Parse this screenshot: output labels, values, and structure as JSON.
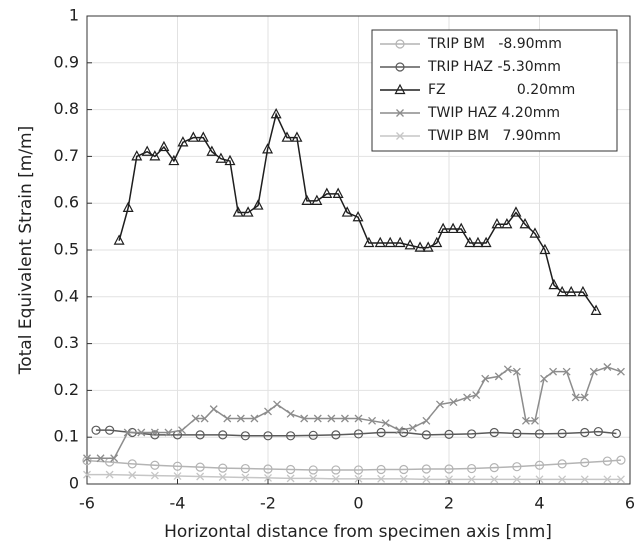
{
  "chart_data": {
    "type": "line",
    "xlabel": "Horizontal distance from specimen axis [mm]",
    "ylabel": "Total Equivalent Strain [m/m]",
    "xlim": [
      -6,
      6
    ],
    "xticks": [
      -6,
      -4,
      -2,
      0,
      2,
      4,
      6
    ],
    "ylim": [
      0,
      1
    ],
    "yticks": [
      0,
      0.1,
      0.2,
      0.3,
      0.4,
      0.5,
      0.6,
      0.7,
      0.8,
      0.9,
      1
    ],
    "grid": true,
    "legend": "upper right",
    "series": [
      {
        "name": "TRIP BM   -8.90mm",
        "color": "#b4b4b4",
        "marker": "circle",
        "x": [
          -6,
          -5.5,
          -5,
          -4.5,
          -4,
          -3.5,
          -3,
          -2.5,
          -2,
          -1.5,
          -1,
          -0.5,
          0,
          0.5,
          1,
          1.5,
          2,
          2.5,
          3,
          3.5,
          4,
          4.5,
          5,
          5.5,
          5.8
        ],
        "values": [
          0.05,
          0.047,
          0.043,
          0.04,
          0.038,
          0.036,
          0.034,
          0.033,
          0.032,
          0.031,
          0.03,
          0.03,
          0.03,
          0.031,
          0.031,
          0.032,
          0.032,
          0.033,
          0.035,
          0.037,
          0.04,
          0.043,
          0.046,
          0.049,
          0.051
        ]
      },
      {
        "name": "TRIP HAZ -5.30mm",
        "color": "#5a5a5a",
        "marker": "circle",
        "x": [
          -5.8,
          -5.5,
          -5,
          -4.5,
          -4,
          -3.5,
          -3,
          -2.5,
          -2,
          -1.5,
          -1,
          -0.5,
          0,
          0.5,
          1,
          1.5,
          2,
          2.5,
          3,
          3.5,
          4,
          4.5,
          5,
          5.3,
          5.7
        ],
        "values": [
          0.115,
          0.115,
          0.11,
          0.105,
          0.105,
          0.105,
          0.105,
          0.103,
          0.103,
          0.103,
          0.104,
          0.105,
          0.107,
          0.11,
          0.11,
          0.105,
          0.106,
          0.107,
          0.11,
          0.108,
          0.107,
          0.108,
          0.11,
          0.112,
          0.108
        ]
      },
      {
        "name": "FZ                0.20mm",
        "color": "#1e1e1e",
        "marker": "triangle",
        "x": [
          -5.29,
          -5.09,
          -4.9,
          -4.67,
          -4.5,
          -4.3,
          -4.08,
          -3.88,
          -3.65,
          -3.43,
          -3.24,
          -3.04,
          -2.84,
          -2.66,
          -2.44,
          -2.22,
          -2.01,
          -1.82,
          -1.58,
          -1.36,
          -1.14,
          -0.92,
          -0.7,
          -0.45,
          -0.25,
          -0.01,
          0.23,
          0.48,
          0.7,
          0.92,
          1.14,
          1.36,
          1.54,
          1.73,
          1.87,
          2.09,
          2.27,
          2.46,
          2.64,
          2.82,
          3.06,
          3.28,
          3.48,
          3.68,
          3.9,
          4.12,
          4.32,
          4.5,
          4.7,
          4.96,
          5.25
        ],
        "values": [
          0.52,
          0.59,
          0.7,
          0.71,
          0.7,
          0.72,
          0.69,
          0.73,
          0.74,
          0.74,
          0.71,
          0.695,
          0.69,
          0.58,
          0.58,
          0.595,
          0.715,
          0.79,
          0.74,
          0.74,
          0.605,
          0.605,
          0.62,
          0.62,
          0.58,
          0.57,
          0.515,
          0.515,
          0.515,
          0.515,
          0.51,
          0.505,
          0.505,
          0.515,
          0.545,
          0.545,
          0.545,
          0.515,
          0.515,
          0.515,
          0.555,
          0.555,
          0.58,
          0.555,
          0.535,
          0.5,
          0.425,
          0.41,
          0.41,
          0.41,
          0.37
        ]
      },
      {
        "name": "TWIP HAZ 4.20mm",
        "color": "#8c8c8c",
        "marker": "x",
        "x": [
          -6,
          -5.7,
          -5.4,
          -5.1,
          -4.8,
          -4.5,
          -4.2,
          -3.9,
          -3.6,
          -3.4,
          -3.2,
          -2.9,
          -2.6,
          -2.3,
          -2,
          -1.8,
          -1.5,
          -1.2,
          -0.9,
          -0.6,
          -0.3,
          0,
          0.3,
          0.6,
          0.9,
          1.2,
          1.5,
          1.8,
          2.1,
          2.4,
          2.6,
          2.8,
          3.1,
          3.3,
          3.5,
          3.7,
          3.9,
          4.1,
          4.3,
          4.6,
          4.8,
          5,
          5.2,
          5.5,
          5.8
        ],
        "values": [
          0.055,
          0.055,
          0.055,
          0.11,
          0.11,
          0.11,
          0.11,
          0.115,
          0.14,
          0.14,
          0.16,
          0.14,
          0.14,
          0.14,
          0.155,
          0.17,
          0.15,
          0.14,
          0.14,
          0.14,
          0.14,
          0.14,
          0.135,
          0.13,
          0.115,
          0.12,
          0.135,
          0.17,
          0.175,
          0.185,
          0.19,
          0.225,
          0.23,
          0.245,
          0.24,
          0.135,
          0.135,
          0.225,
          0.24,
          0.24,
          0.185,
          0.185,
          0.24,
          0.25,
          0.24
        ]
      },
      {
        "name": "TWIP BM   7.90mm",
        "color": "#c6c6c6",
        "marker": "x",
        "x": [
          -6,
          -5.5,
          -5,
          -4.5,
          -4,
          -3.5,
          -3,
          -2.5,
          -2,
          -1.5,
          -1,
          -0.5,
          0,
          0.5,
          1,
          1.5,
          2,
          2.5,
          3,
          3.5,
          4,
          4.5,
          5,
          5.5,
          5.8
        ],
        "values": [
          0.02,
          0.02,
          0.019,
          0.018,
          0.017,
          0.016,
          0.015,
          0.014,
          0.013,
          0.012,
          0.012,
          0.011,
          0.011,
          0.011,
          0.011,
          0.01,
          0.01,
          0.01,
          0.01,
          0.01,
          0.01,
          0.01,
          0.01,
          0.01,
          0.01
        ]
      }
    ]
  }
}
